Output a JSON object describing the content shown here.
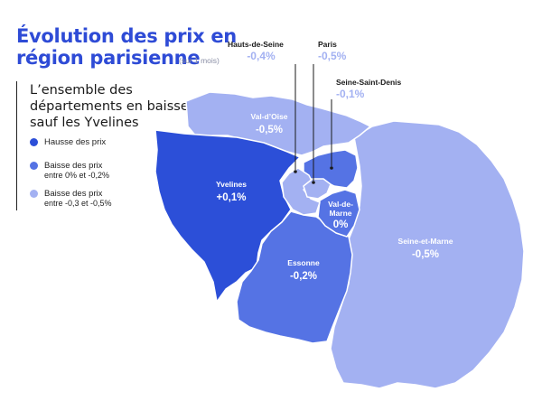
{
  "title": {
    "line1": "Évolution des prix en",
    "line2": "région parisienne",
    "subtitle": "(sur 1 mois)"
  },
  "panel": {
    "heading": "L’ensemble des départements en baisse, sauf les Yvelines",
    "legend": [
      {
        "label": "Hausse des prix",
        "sublabel": "",
        "color": "#2c4fd8"
      },
      {
        "label": "Baisse des prix",
        "sublabel": "entre 0% et -0,2%",
        "color": "#5573e4"
      },
      {
        "label": "Baisse des prix",
        "sublabel": "entre -0,3 et -0,5%",
        "color": "#a3b1f2"
      }
    ]
  },
  "colors": {
    "title": "#2e4bd6",
    "hausse": "#2c4fd8",
    "baisse_faible": "#5573e4",
    "baisse_forte": "#a3b1f2",
    "border": "#ffffff"
  },
  "departments": {
    "val_doise": {
      "name": "Val-d’Oise",
      "value": "-0,5%",
      "category": "baisse_forte"
    },
    "yvelines": {
      "name": "Yvelines",
      "value": "+0,1%",
      "category": "hausse"
    },
    "essonne": {
      "name": "Essonne",
      "value": "-0,2%",
      "category": "baisse_faible"
    },
    "val_de_marne": {
      "name": "Val-de-Marne",
      "name_lines": [
        "Val-de-",
        "Marne"
      ],
      "value": "0%",
      "category": "baisse_faible"
    },
    "seine_et_marne": {
      "name": "Seine-et-Marne",
      "value": "-0,5%",
      "category": "baisse_forte"
    },
    "hauts_de_seine": {
      "name": "Hauts-de-Seine",
      "value": "-0,4%",
      "category": "baisse_forte"
    },
    "paris": {
      "name": "Paris",
      "value": "-0,5%",
      "category": "baisse_forte"
    },
    "seine_saint_denis": {
      "name": "Seine-Saint-Denis",
      "value": "-0,1%",
      "category": "baisse_faible"
    }
  }
}
